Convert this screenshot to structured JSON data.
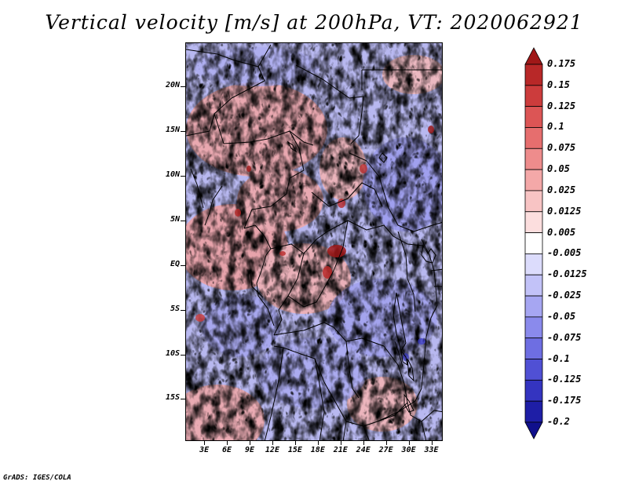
{
  "title": "Vertical velocity [m/s] at 200hPa, VT: 2020062921",
  "credit": "GrADS: IGES/COLA",
  "lat_labels": [
    "20N",
    "15N",
    "10N",
    "5N",
    "EQ",
    "5S",
    "10S",
    "15S"
  ],
  "lat_values": [
    20,
    15,
    10,
    5,
    0,
    -5,
    -10,
    -15
  ],
  "lon_labels": [
    "3E",
    "6E",
    "9E",
    "12E",
    "15E",
    "18E",
    "21E",
    "24E",
    "27E",
    "30E",
    "33E"
  ],
  "lon_values": [
    3,
    6,
    9,
    12,
    15,
    18,
    21,
    24,
    27,
    30,
    33
  ],
  "map_extent": {
    "lon_min": 0.5,
    "lon_max": 34.5,
    "lat_min": -19.7,
    "lat_max": 24.9
  },
  "colorbar": {
    "labels": [
      "0.175",
      "0.15",
      "0.125",
      "0.1",
      "0.075",
      "0.05",
      "0.025",
      "0.0125",
      "0.005",
      "-0.005",
      "-0.0125",
      "-0.025",
      "-0.05",
      "-0.075",
      "-0.1",
      "-0.125",
      "-0.175",
      "-0.2"
    ],
    "colors": [
      "#a01818",
      "#b82828",
      "#cc3c3c",
      "#dc5555",
      "#e66e6e",
      "#ee8c8c",
      "#f4a8a8",
      "#f8c4c4",
      "#fcdede",
      "#ffffff",
      "#dcdcfc",
      "#c2c2f8",
      "#a6a6f2",
      "#8a8aec",
      "#6e6ee2",
      "#5050d4",
      "#3434c0",
      "#1e1ea6",
      "#10108c"
    ]
  }
}
